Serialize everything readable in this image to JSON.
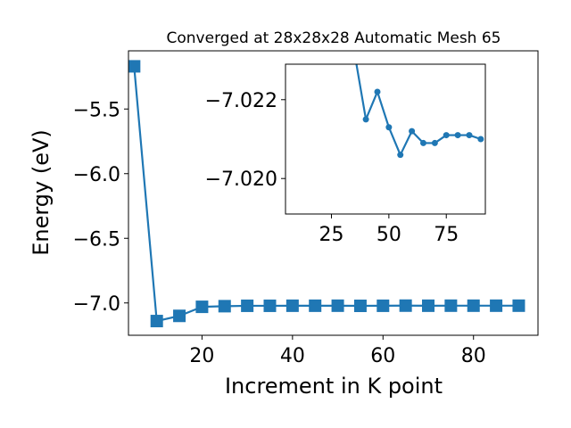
{
  "chart_data": [
    {
      "type": "line",
      "title": "Converged at 28x28x28 Automatic Mesh 65",
      "xlabel": "Increment in K point",
      "ylabel": "Energy (eV)",
      "xlim": [
        3.75,
        94.25
      ],
      "ylim": [
        -7.25,
        -5.05
      ],
      "x_ticks": [
        20,
        40,
        60,
        80
      ],
      "x_tick_labels": [
        "20",
        "40",
        "60",
        "80"
      ],
      "y_ticks": [
        -7.0,
        -6.5,
        -6.0,
        -5.5
      ],
      "y_tick_labels": [
        "−7.0",
        "−6.5",
        "−6.0",
        "−5.5"
      ],
      "grid": false,
      "marker": "square",
      "color": "#1f77b4",
      "series": [
        {
          "x": [
            5,
            10,
            15,
            20,
            25,
            30,
            35,
            40,
            45,
            50,
            55,
            60,
            65,
            70,
            75,
            80,
            85,
            90
          ],
          "y": [
            -5.17,
            -7.14,
            -7.1,
            -7.03,
            -7.025,
            -7.022,
            -7.022,
            -7.0215,
            -7.0215,
            -7.0213,
            -7.0224,
            -7.0218,
            -7.0208,
            -7.0214,
            -7.0211,
            -7.0212,
            -7.0212,
            -7.0211
          ]
        }
      ]
    },
    {
      "type": "line",
      "title": "",
      "xlabel": "",
      "ylabel": "",
      "xlim": [
        5,
        92
      ],
      "ylim": [
        -7.0191,
        -7.0229
      ],
      "x_ticks": [
        25,
        50,
        75
      ],
      "x_tick_labels": [
        "25",
        "50",
        "75"
      ],
      "y_ticks": [
        -7.022,
        -7.02
      ],
      "y_tick_labels": [
        "−7.022",
        "−7.020"
      ],
      "y_inverted": true,
      "grid": false,
      "marker": "circle",
      "color": "#1f77b4",
      "series": [
        {
          "x": [
            35,
            40,
            45,
            50,
            55,
            60,
            65,
            70,
            75,
            80,
            85,
            90
          ],
          "y": [
            -7.0232,
            -7.0215,
            -7.0222,
            -7.0213,
            -7.0206,
            -7.0212,
            -7.0209,
            -7.0209,
            -7.0211,
            -7.0211,
            -7.0211,
            -7.021
          ]
        }
      ]
    }
  ]
}
